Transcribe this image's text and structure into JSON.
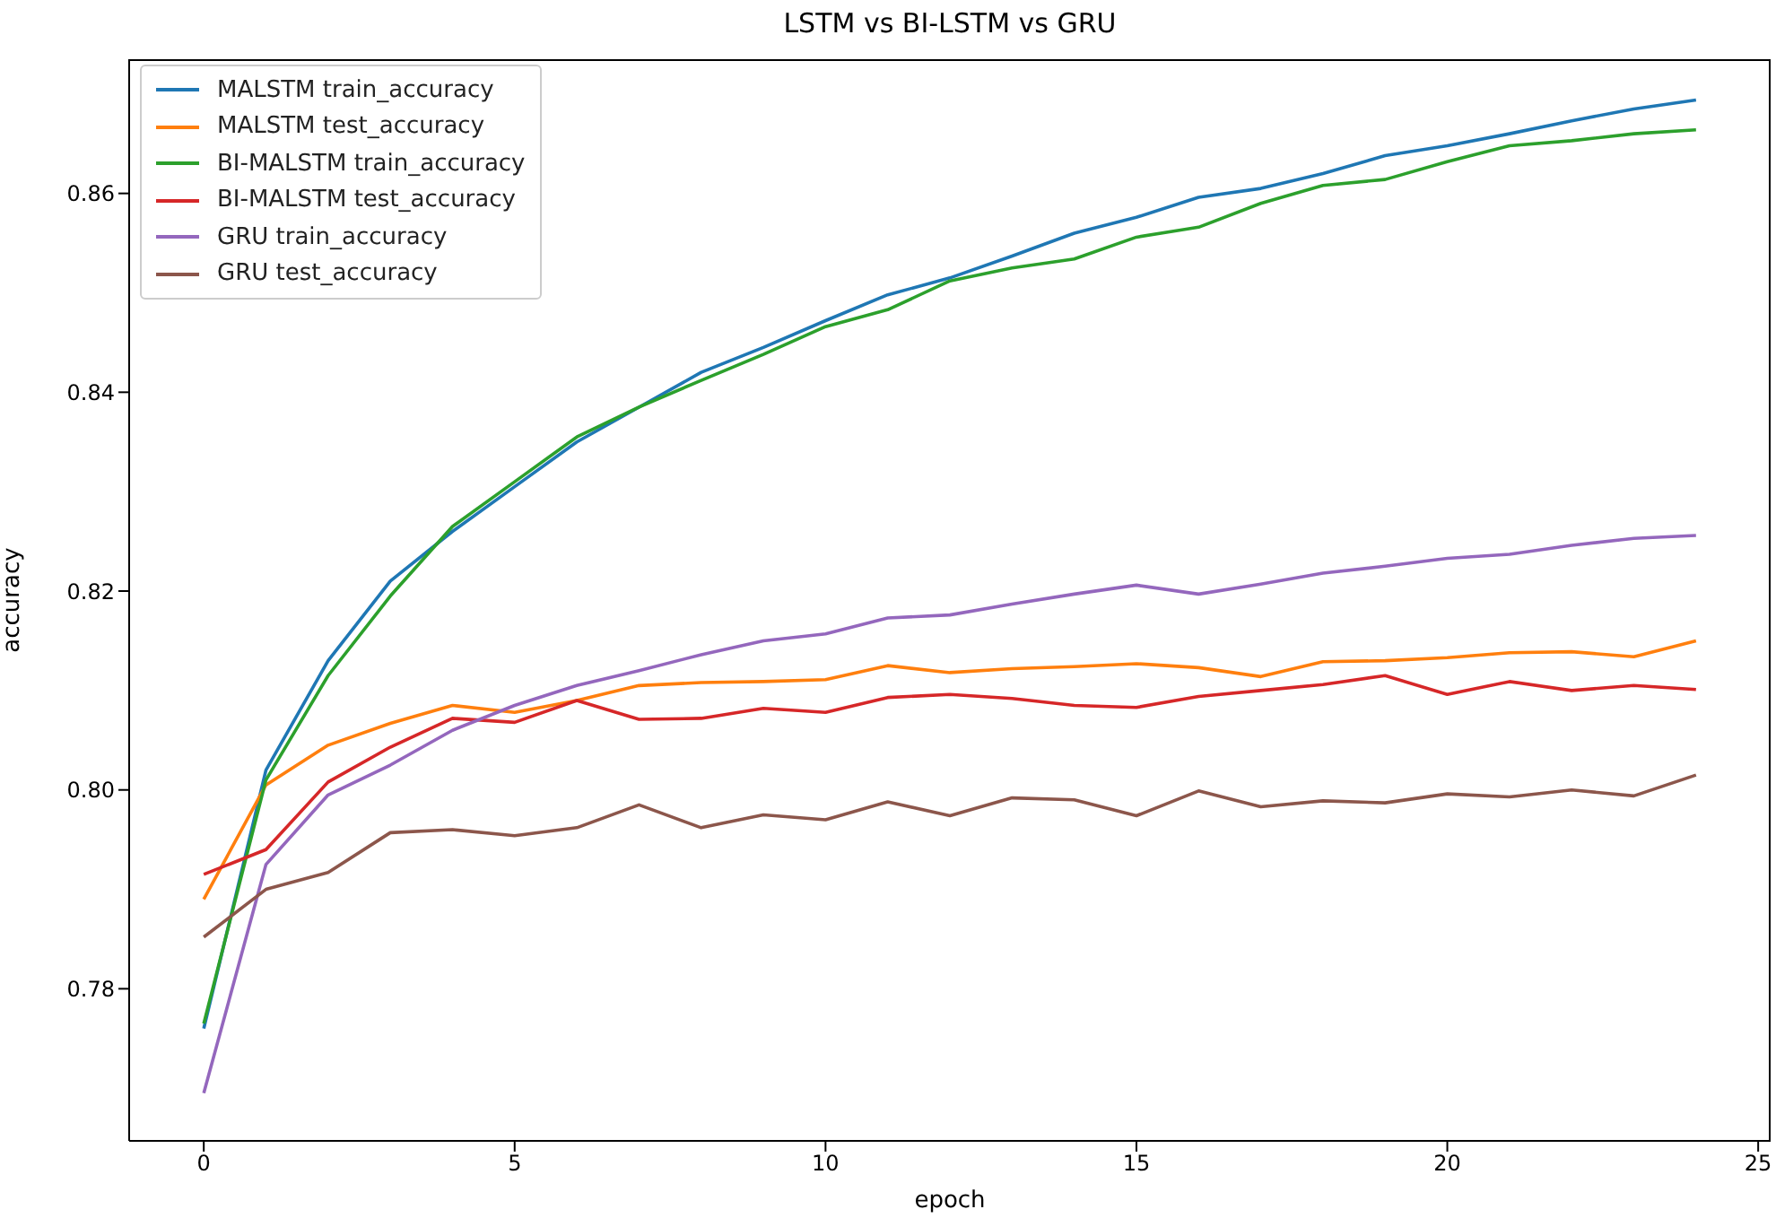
{
  "chart_data": {
    "type": "line",
    "title": "LSTM vs BI-LSTM vs GRU",
    "xlabel": "epoch",
    "ylabel": "accuracy",
    "x": [
      0,
      1,
      2,
      3,
      4,
      5,
      6,
      7,
      8,
      9,
      10,
      11,
      12,
      13,
      14,
      15,
      16,
      17,
      18,
      19,
      20,
      21,
      22,
      23,
      24
    ],
    "series": [
      {
        "name": "MALSTM train_accuracy",
        "color": "#1f77b4",
        "values": [
          0.776,
          0.802,
          0.813,
          0.821,
          0.826,
          0.8305,
          0.835,
          0.8385,
          0.842,
          0.8445,
          0.8472,
          0.8498,
          0.8515,
          0.8537,
          0.856,
          0.8576,
          0.8596,
          0.8605,
          0.862,
          0.8638,
          0.8648,
          0.866,
          0.8673,
          0.8685,
          0.8694
        ]
      },
      {
        "name": "MALSTM test_accuracy",
        "color": "#ff7f0e",
        "values": [
          0.789,
          0.8005,
          0.8045,
          0.8067,
          0.8085,
          0.8078,
          0.809,
          0.8105,
          0.8108,
          0.8109,
          0.8111,
          0.8125,
          0.8118,
          0.8122,
          0.8124,
          0.8127,
          0.8123,
          0.8114,
          0.8129,
          0.813,
          0.8133,
          0.8138,
          0.8139,
          0.8134,
          0.815
        ]
      },
      {
        "name": "BI-MALSTM train_accuracy",
        "color": "#2ca02c",
        "values": [
          0.7765,
          0.801,
          0.8115,
          0.8195,
          0.8265,
          0.831,
          0.8355,
          0.8385,
          0.8412,
          0.8438,
          0.8466,
          0.8483,
          0.8512,
          0.8525,
          0.8534,
          0.8556,
          0.8566,
          0.859,
          0.8608,
          0.8614,
          0.8632,
          0.8648,
          0.8653,
          0.866,
          0.8664
        ]
      },
      {
        "name": "BI-MALSTM test_accuracy",
        "color": "#d62728",
        "values": [
          0.7915,
          0.794,
          0.8008,
          0.8043,
          0.8072,
          0.8068,
          0.809,
          0.8071,
          0.8072,
          0.8082,
          0.8078,
          0.8093,
          0.8096,
          0.8092,
          0.8085,
          0.8083,
          0.8094,
          0.81,
          0.8106,
          0.8115,
          0.8096,
          0.8109,
          0.81,
          0.8105,
          0.8101
        ]
      },
      {
        "name": "GRU train_accuracy",
        "color": "#9467bd",
        "values": [
          0.7695,
          0.7925,
          0.7995,
          0.8025,
          0.806,
          0.8085,
          0.8105,
          0.812,
          0.8136,
          0.815,
          0.8157,
          0.8173,
          0.8176,
          0.8187,
          0.8197,
          0.8206,
          0.8197,
          0.8207,
          0.8218,
          0.8225,
          0.8233,
          0.8237,
          0.8246,
          0.8253,
          0.8256
        ]
      },
      {
        "name": "GRU test_accuracy",
        "color": "#8c564b",
        "values": [
          0.7852,
          0.79,
          0.7917,
          0.7957,
          0.796,
          0.7954,
          0.7962,
          0.7985,
          0.7962,
          0.7975,
          0.797,
          0.7988,
          0.7974,
          0.7992,
          0.799,
          0.7974,
          0.7999,
          0.7983,
          0.7989,
          0.7987,
          0.7996,
          0.7993,
          0.8,
          0.7994,
          0.8015
        ]
      }
    ],
    "xlim": [
      -1.2,
      25.2
    ],
    "xticks": [
      0,
      5,
      10,
      15,
      20,
      25
    ],
    "ylim": [
      0.7647,
      0.8735
    ],
    "yticks": [
      0.78,
      {
        "value": 0.8,
        "label": "0.80"
      },
      0.82,
      0.84,
      0.86
    ],
    "grid": false,
    "legend": "top left",
    "marker": "none",
    "line_style": "solid"
  }
}
